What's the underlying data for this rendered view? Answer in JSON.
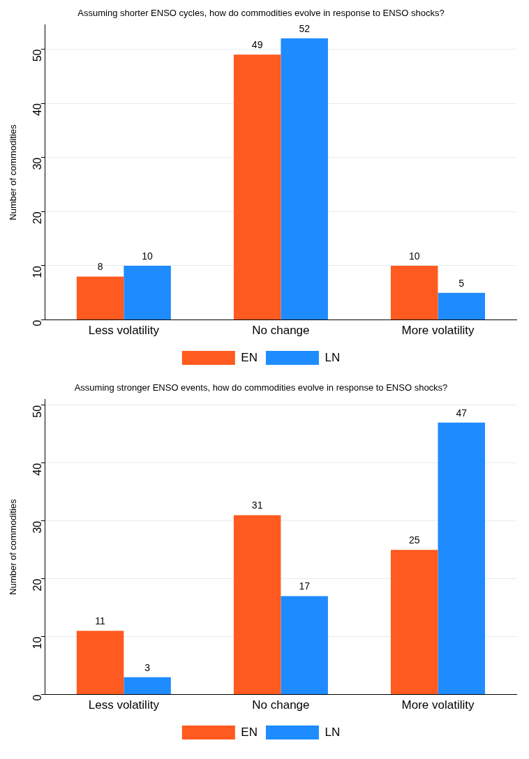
{
  "chart_data": [
    {
      "type": "bar",
      "title": "Assuming shorter ENSO cycles, how do commodities evolve in response to ENSO shocks?",
      "ylabel": "Number of commodities",
      "categories": [
        "Less volatility",
        "No change",
        "More volatility"
      ],
      "series": [
        {
          "name": "EN",
          "color": "#ff5a1f",
          "values": [
            8,
            49,
            10
          ]
        },
        {
          "name": "LN",
          "color": "#1e8cff",
          "values": [
            10,
            52,
            5
          ]
        }
      ],
      "ylim": [
        0,
        54.5
      ],
      "yticks": [
        0,
        10,
        20,
        30,
        40,
        50
      ],
      "grid": "y",
      "legend": "bottom",
      "data_labels": true
    },
    {
      "type": "bar",
      "title": "Assuming stronger ENSO events, how do commodities evolve in response to ENSO shocks?",
      "ylabel": "Number of commodities",
      "categories": [
        "Less volatility",
        "No change",
        "More volatility"
      ],
      "series": [
        {
          "name": "EN",
          "color": "#ff5a1f",
          "values": [
            11,
            31,
            25
          ]
        },
        {
          "name": "LN",
          "color": "#1e8cff",
          "values": [
            3,
            17,
            47
          ]
        }
      ],
      "ylim": [
        0,
        51
      ],
      "yticks": [
        0,
        10,
        20,
        30,
        40,
        50
      ],
      "grid": "y",
      "legend": "bottom",
      "data_labels": true
    }
  ]
}
